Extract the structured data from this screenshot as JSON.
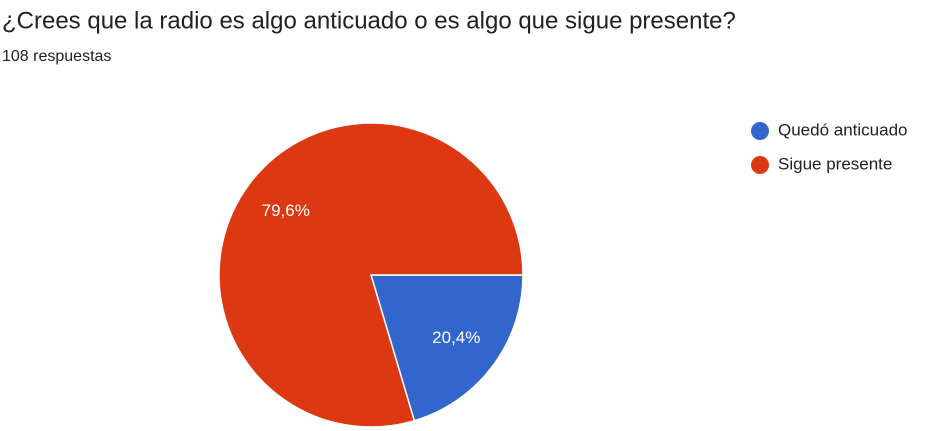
{
  "chart_data": {
    "type": "pie",
    "title": "¿Crees que la radio es algo anticuado o es algo que sigue presente?",
    "subtitle": "108 respuestas",
    "categories": [
      "Quedó anticuado",
      "Sigue presente"
    ],
    "values": [
      20.4,
      79.6
    ],
    "value_labels": [
      "20,4%",
      "79,6%"
    ],
    "colors": [
      "#3366cc",
      "#dc3912"
    ],
    "legend": "right"
  }
}
